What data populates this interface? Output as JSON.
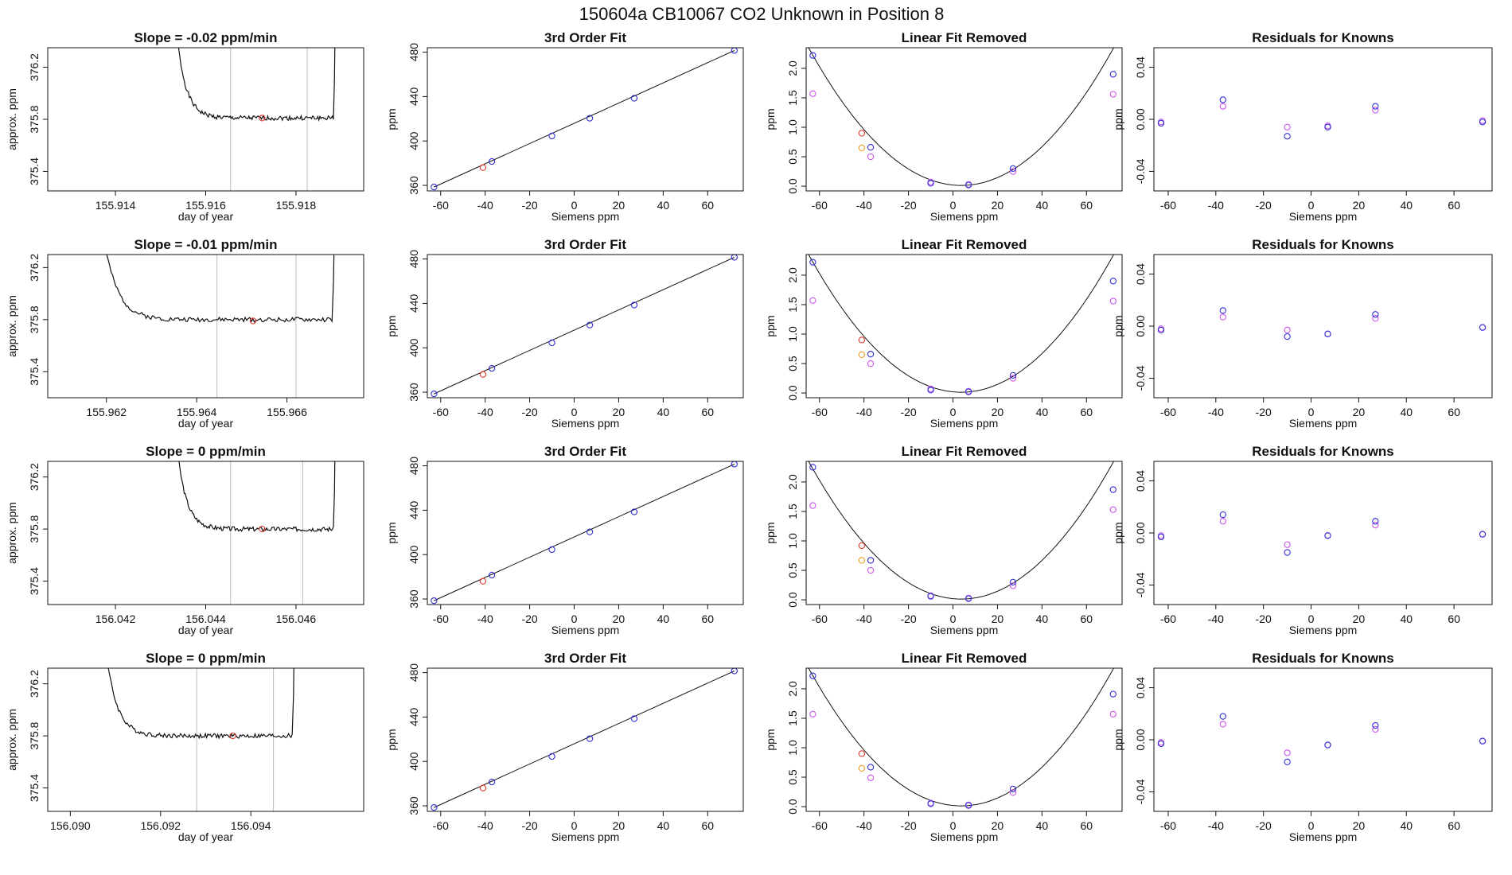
{
  "page_title": "150604a     CB10067   CO2 Unknown in Position  8",
  "colors": {
    "blue": "#2f2fd8",
    "red": "#e23b2e",
    "magenta": "#cc55ee",
    "orange": "#f0a020",
    "gray_line": "#bbbbbb",
    "ink": "#111111"
  },
  "chart_data": [
    {
      "type": "line",
      "row": 0,
      "col": 0,
      "title": "Slope =  -0.02  ppm/min",
      "xlabel": "day of year",
      "ylabel": "approx. ppm",
      "xlim": [
        155.9125,
        155.9195
      ],
      "ylim": [
        375.25,
        376.35
      ],
      "xticks": [
        "155.914",
        "155.916",
        "155.918"
      ],
      "yticks": [
        "375.4",
        "375.8",
        "376.2"
      ],
      "trace": {
        "start": 155.9164,
        "end": 155.9186,
        "plateau": 375.81,
        "left_edge": 155.9152,
        "right_edge": 155.9189,
        "seed": 1
      },
      "vlines": [
        155.91655,
        155.91825
      ],
      "point": {
        "x": 155.91725,
        "y": 375.81
      }
    },
    {
      "type": "scatter",
      "row": 0,
      "col": 1,
      "title": "3rd Order Fit",
      "xlabel": "Siemens ppm",
      "ylabel": "ppm",
      "xlim": [
        -66,
        76
      ],
      "ylim": [
        355,
        484
      ],
      "xticks": [
        "-60",
        "-40",
        "-20",
        "0",
        "20",
        "40",
        "60"
      ],
      "yticks": [
        "360",
        "400",
        "440",
        "480"
      ],
      "line": [
        [
          -63,
          358.5
        ],
        [
          72,
          481.5
        ]
      ],
      "blue": [
        [
          -63,
          358.5
        ],
        [
          -37,
          381.5
        ],
        [
          -10,
          404.5
        ],
        [
          7,
          420.5
        ],
        [
          27,
          438.5
        ],
        [
          72,
          481.5
        ]
      ],
      "red": [
        [
          -41,
          376
        ]
      ]
    },
    {
      "type": "scatter",
      "row": 0,
      "col": 2,
      "title": "Linear Fit Removed",
      "xlabel": "Siemens ppm",
      "ylabel": "ppm",
      "xlim": [
        -66,
        76
      ],
      "ylim": [
        -0.08,
        2.35
      ],
      "xticks": [
        "-60",
        "-40",
        "-20",
        "0",
        "20",
        "40",
        "60"
      ],
      "yticks": [
        "0.0",
        "0.5",
        "1.0",
        "1.5",
        "2.0"
      ],
      "curve": {
        "a": 0.000497,
        "b": -0.00365,
        "c": 0.02
      },
      "blue": [
        [
          -63,
          2.22
        ],
        [
          -37,
          0.66
        ],
        [
          -10,
          0.05
        ],
        [
          7,
          0.02
        ],
        [
          27,
          0.3
        ],
        [
          72,
          1.9
        ]
      ],
      "magenta": [
        [
          -63,
          1.57
        ],
        [
          -37,
          0.5
        ],
        [
          -10,
          0.07
        ],
        [
          7,
          0.03
        ],
        [
          27,
          0.25
        ],
        [
          72,
          1.56
        ]
      ],
      "red": [
        [
          -41,
          0.9
        ]
      ],
      "orange": [
        [
          -41,
          0.65
        ]
      ]
    },
    {
      "type": "scatter",
      "row": 0,
      "col": 3,
      "title": "Residuals for Knowns",
      "xlabel": "Siemens ppm",
      "ylabel": "ppm",
      "xlim": [
        -66,
        76
      ],
      "ylim": [
        -0.055,
        0.055
      ],
      "xticks": [
        "-60",
        "-40",
        "-20",
        "0",
        "20",
        "40",
        "60"
      ],
      "yticks": [
        "-0.04",
        "0.00",
        "0.04"
      ],
      "blue": [
        [
          -63,
          -0.003
        ],
        [
          -37,
          0.015
        ],
        [
          -10,
          -0.013
        ],
        [
          7,
          -0.006
        ],
        [
          27,
          0.01
        ],
        [
          72,
          -0.002
        ]
      ],
      "magenta": [
        [
          -63,
          -0.002
        ],
        [
          -37,
          0.01
        ],
        [
          -10,
          -0.006
        ],
        [
          7,
          -0.005
        ],
        [
          27,
          0.007
        ],
        [
          72,
          -0.001
        ]
      ]
    },
    {
      "type": "line",
      "row": 1,
      "col": 0,
      "title": "Slope =  -0.01  ppm/min",
      "xlabel": "day of year",
      "ylabel": "approx. ppm",
      "xlim": [
        155.9607,
        155.9677
      ],
      "ylim": [
        375.2,
        376.3
      ],
      "xticks": [
        "155.962",
        "155.964",
        "155.966"
      ],
      "yticks": [
        "375.4",
        "375.8",
        "376.2"
      ],
      "trace": {
        "start": 155.9615,
        "end": 155.96705,
        "plateau": 375.8,
        "left_edge": 155.9617,
        "right_edge": 155.9671,
        "seed": 2
      },
      "vlines": [
        155.96445,
        155.9662
      ],
      "point": {
        "x": 155.96525,
        "y": 375.79
      }
    },
    {
      "type": "scatter",
      "row": 1,
      "col": 1,
      "title": "3rd Order Fit",
      "xlabel": "Siemens ppm",
      "ylabel": "ppm",
      "xlim": [
        -66,
        76
      ],
      "ylim": [
        355,
        484
      ],
      "xticks": [
        "-60",
        "-40",
        "-20",
        "0",
        "20",
        "40",
        "60"
      ],
      "yticks": [
        "360",
        "400",
        "440",
        "480"
      ],
      "line": [
        [
          -63,
          358.5
        ],
        [
          72,
          481.5
        ]
      ],
      "blue": [
        [
          -63,
          358.5
        ],
        [
          -37,
          381.5
        ],
        [
          -10,
          404.5
        ],
        [
          7,
          420.5
        ],
        [
          27,
          438.5
        ],
        [
          72,
          481.5
        ]
      ],
      "red": [
        [
          -41,
          376
        ]
      ]
    },
    {
      "type": "scatter",
      "row": 1,
      "col": 2,
      "title": "Linear Fit Removed",
      "xlabel": "Siemens ppm",
      "ylabel": "ppm",
      "xlim": [
        -66,
        76
      ],
      "ylim": [
        -0.08,
        2.35
      ],
      "xticks": [
        "-60",
        "-40",
        "-20",
        "0",
        "20",
        "40",
        "60"
      ],
      "yticks": [
        "0.0",
        "0.5",
        "1.0",
        "1.5",
        "2.0"
      ],
      "curve": {
        "a": 0.000497,
        "b": -0.00365,
        "c": 0.02
      },
      "blue": [
        [
          -63,
          2.22
        ],
        [
          -37,
          0.66
        ],
        [
          -10,
          0.05
        ],
        [
          7,
          0.02
        ],
        [
          27,
          0.3
        ],
        [
          72,
          1.9
        ]
      ],
      "magenta": [
        [
          -63,
          1.57
        ],
        [
          -37,
          0.5
        ],
        [
          -10,
          0.07
        ],
        [
          7,
          0.03
        ],
        [
          27,
          0.25
        ],
        [
          72,
          1.56
        ]
      ],
      "red": [
        [
          -41,
          0.9
        ]
      ],
      "orange": [
        [
          -41,
          0.65
        ]
      ]
    },
    {
      "type": "scatter",
      "row": 1,
      "col": 3,
      "title": "Residuals for Knowns",
      "xlabel": "Siemens ppm",
      "ylabel": "ppm",
      "xlim": [
        -66,
        76
      ],
      "ylim": [
        -0.055,
        0.055
      ],
      "xticks": [
        "-60",
        "-40",
        "-20",
        "0",
        "20",
        "40",
        "60"
      ],
      "yticks": [
        "-0.04",
        "0.00",
        "0.04"
      ],
      "blue": [
        [
          -63,
          -0.003
        ],
        [
          -37,
          0.012
        ],
        [
          -10,
          -0.008
        ],
        [
          7,
          -0.006
        ],
        [
          27,
          0.009
        ],
        [
          72,
          -0.001
        ]
      ],
      "magenta": [
        [
          -63,
          -0.002
        ],
        [
          -37,
          0.007
        ],
        [
          -10,
          -0.003
        ],
        [
          7,
          -0.006
        ],
        [
          27,
          0.006
        ],
        [
          72,
          -0.001
        ]
      ]
    },
    {
      "type": "line",
      "row": 2,
      "col": 0,
      "title": "Slope =  0  ppm/min",
      "xlabel": "day of year",
      "ylabel": "approx. ppm",
      "xlim": [
        156.0405,
        156.0475
      ],
      "ylim": [
        375.22,
        376.32
      ],
      "xticks": [
        "156.042",
        "156.044",
        "156.046"
      ],
      "yticks": [
        "375.4",
        "375.8",
        "376.2"
      ],
      "trace": {
        "start": 156.0444,
        "end": 156.0468,
        "plateau": 375.8,
        "left_edge": 156.0432,
        "right_edge": 156.0469,
        "seed": 3
      },
      "vlines": [
        156.04455,
        156.04615
      ],
      "point": {
        "x": 156.04525,
        "y": 375.8
      }
    },
    {
      "type": "scatter",
      "row": 2,
      "col": 1,
      "title": "3rd Order Fit",
      "xlabel": "Siemens ppm",
      "ylabel": "ppm",
      "xlim": [
        -66,
        76
      ],
      "ylim": [
        355,
        484
      ],
      "xticks": [
        "-60",
        "-40",
        "-20",
        "0",
        "20",
        "40",
        "60"
      ],
      "yticks": [
        "360",
        "400",
        "440",
        "480"
      ],
      "line": [
        [
          -63,
          358.5
        ],
        [
          72,
          481.5
        ]
      ],
      "blue": [
        [
          -63,
          358.5
        ],
        [
          -37,
          381.5
        ],
        [
          -10,
          404.5
        ],
        [
          7,
          420.5
        ],
        [
          27,
          438.5
        ],
        [
          72,
          481.5
        ]
      ],
      "red": [
        [
          -41,
          376
        ]
      ]
    },
    {
      "type": "scatter",
      "row": 2,
      "col": 2,
      "title": "Linear Fit Removed",
      "xlabel": "Siemens ppm",
      "ylabel": "ppm",
      "xlim": [
        -66,
        76
      ],
      "ylim": [
        -0.08,
        2.35
      ],
      "xticks": [
        "-60",
        "-40",
        "-20",
        "0",
        "20",
        "40",
        "60"
      ],
      "yticks": [
        "0.0",
        "0.5",
        "1.0",
        "1.5",
        "2.0"
      ],
      "curve": {
        "a": 0.000497,
        "b": -0.00365,
        "c": 0.02
      },
      "blue": [
        [
          -63,
          2.25
        ],
        [
          -37,
          0.67
        ],
        [
          -10,
          0.06
        ],
        [
          7,
          0.02
        ],
        [
          27,
          0.3
        ],
        [
          72,
          1.87
        ]
      ],
      "magenta": [
        [
          -63,
          1.6
        ],
        [
          -37,
          0.5
        ],
        [
          -10,
          0.07
        ],
        [
          7,
          0.03
        ],
        [
          27,
          0.24
        ],
        [
          72,
          1.53
        ]
      ],
      "red": [
        [
          -41,
          0.92
        ]
      ],
      "orange": [
        [
          -41,
          0.67
        ]
      ]
    },
    {
      "type": "scatter",
      "row": 2,
      "col": 3,
      "title": "Residuals for Knowns",
      "xlabel": "Siemens ppm",
      "ylabel": "ppm",
      "xlim": [
        -66,
        76
      ],
      "ylim": [
        -0.055,
        0.055
      ],
      "xticks": [
        "-60",
        "-40",
        "-20",
        "0",
        "20",
        "40",
        "60"
      ],
      "yticks": [
        "-0.04",
        "0.00",
        "0.04"
      ],
      "blue": [
        [
          -63,
          -0.003
        ],
        [
          -37,
          0.014
        ],
        [
          -10,
          -0.015
        ],
        [
          7,
          -0.002
        ],
        [
          27,
          0.009
        ],
        [
          72,
          -0.001
        ]
      ],
      "magenta": [
        [
          -63,
          -0.002
        ],
        [
          -37,
          0.009
        ],
        [
          -10,
          -0.009
        ],
        [
          7,
          -0.002
        ],
        [
          27,
          0.006
        ],
        [
          72,
          -0.001
        ]
      ]
    },
    {
      "type": "line",
      "row": 3,
      "col": 0,
      "title": "Slope =  0  ppm/min",
      "xlabel": "day of year",
      "ylabel": "approx. ppm",
      "xlim": [
        156.0895,
        156.0965
      ],
      "ylim": [
        375.22,
        376.32
      ],
      "xticks": [
        "156.090",
        "156.092",
        "156.094"
      ],
      "yticks": [
        "375.4",
        "375.8",
        "376.2"
      ],
      "trace": {
        "start": 156.0928,
        "end": 156.0949,
        "plateau": 375.8,
        "left_edge": 156.0906,
        "right_edge": 156.095,
        "seed": 4
      },
      "vlines": [
        156.0928,
        156.0945
      ],
      "point": {
        "x": 156.0936,
        "y": 375.8
      }
    },
    {
      "type": "scatter",
      "row": 3,
      "col": 1,
      "title": "3rd Order Fit",
      "xlabel": "Siemens ppm",
      "ylabel": "ppm",
      "xlim": [
        -66,
        76
      ],
      "ylim": [
        355,
        484
      ],
      "xticks": [
        "-60",
        "-40",
        "-20",
        "0",
        "20",
        "40",
        "60"
      ],
      "yticks": [
        "360",
        "400",
        "440",
        "480"
      ],
      "line": [
        [
          -63,
          358.5
        ],
        [
          72,
          481.5
        ]
      ],
      "blue": [
        [
          -63,
          358.5
        ],
        [
          -37,
          381.5
        ],
        [
          -10,
          404.5
        ],
        [
          7,
          420.5
        ],
        [
          27,
          438.5
        ],
        [
          72,
          481.5
        ]
      ],
      "red": [
        [
          -41,
          376
        ]
      ]
    },
    {
      "type": "scatter",
      "row": 3,
      "col": 2,
      "title": "Linear Fit Removed",
      "xlabel": "Siemens ppm",
      "ylabel": "ppm",
      "xlim": [
        -66,
        76
      ],
      "ylim": [
        -0.08,
        2.35
      ],
      "xticks": [
        "-60",
        "-40",
        "-20",
        "0",
        "20",
        "40",
        "60"
      ],
      "yticks": [
        "0.0",
        "0.5",
        "1.0",
        "1.5",
        "2.0"
      ],
      "curve": {
        "a": 0.000497,
        "b": -0.00365,
        "c": 0.02
      },
      "blue": [
        [
          -63,
          2.22
        ],
        [
          -37,
          0.67
        ],
        [
          -10,
          0.05
        ],
        [
          7,
          0.02
        ],
        [
          27,
          0.3
        ],
        [
          72,
          1.91
        ]
      ],
      "magenta": [
        [
          -63,
          1.57
        ],
        [
          -37,
          0.49
        ],
        [
          -10,
          0.06
        ],
        [
          7,
          0.03
        ],
        [
          27,
          0.24
        ],
        [
          72,
          1.57
        ]
      ],
      "red": [
        [
          -41,
          0.9
        ]
      ],
      "orange": [
        [
          -41,
          0.65
        ]
      ]
    },
    {
      "type": "scatter",
      "row": 3,
      "col": 3,
      "title": "Residuals for Knowns",
      "xlabel": "Siemens ppm",
      "ylabel": "ppm",
      "xlim": [
        -66,
        76
      ],
      "ylim": [
        -0.055,
        0.055
      ],
      "xticks": [
        "-60",
        "-40",
        "-20",
        "0",
        "20",
        "40",
        "60"
      ],
      "yticks": [
        "-0.04",
        "0.00",
        "0.04"
      ],
      "blue": [
        [
          -63,
          -0.003
        ],
        [
          -37,
          0.018
        ],
        [
          -10,
          -0.017
        ],
        [
          7,
          -0.004
        ],
        [
          27,
          0.011
        ],
        [
          72,
          -0.001
        ]
      ],
      "magenta": [
        [
          -63,
          -0.002
        ],
        [
          -37,
          0.012
        ],
        [
          -10,
          -0.01
        ],
        [
          7,
          -0.004
        ],
        [
          27,
          0.008
        ],
        [
          72,
          -0.001
        ]
      ]
    }
  ]
}
